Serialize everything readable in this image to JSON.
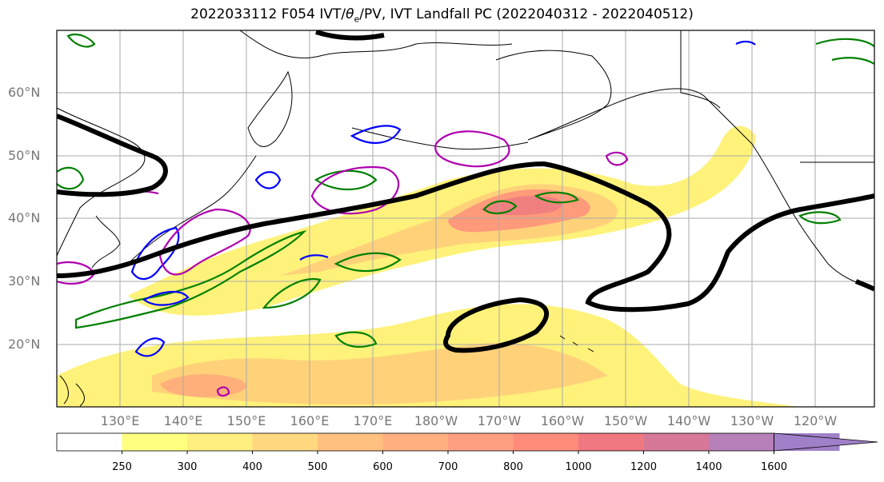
{
  "title": {
    "prefix": "2022033112 F054 IVT/",
    "theta": "θ",
    "subscript": "e",
    "suffix": "/PV, IVT Landfall PC (2022040312 - 2022040512)"
  },
  "map": {
    "lat_labels": [
      "60°N",
      "50°N",
      "40°N",
      "30°N",
      "20°N"
    ],
    "lon_labels": [
      "130°E",
      "140°E",
      "150°E",
      "160°E",
      "170°E",
      "180°W",
      "170°W",
      "160°W",
      "150°W",
      "140°W",
      "130°W",
      "120°W"
    ],
    "colors": {
      "ivt_contour": "#000000",
      "theta_e_contour": "#008000",
      "pv_contour_a": "#0000ff",
      "pv_contour_b": "#b000b0"
    }
  },
  "colorbar": {
    "labels": [
      "250",
      "300",
      "400",
      "500",
      "600",
      "700",
      "800",
      "1000",
      "1200",
      "1400",
      "1600"
    ],
    "colors": [
      "#ffffff",
      "#ffff80",
      "#ffee80",
      "#ffd880",
      "#ffc080",
      "#ffb080",
      "#ffa080",
      "#ff8c7a",
      "#f07880",
      "#d87898",
      "#b880b8",
      "#a080c8"
    ]
  }
}
